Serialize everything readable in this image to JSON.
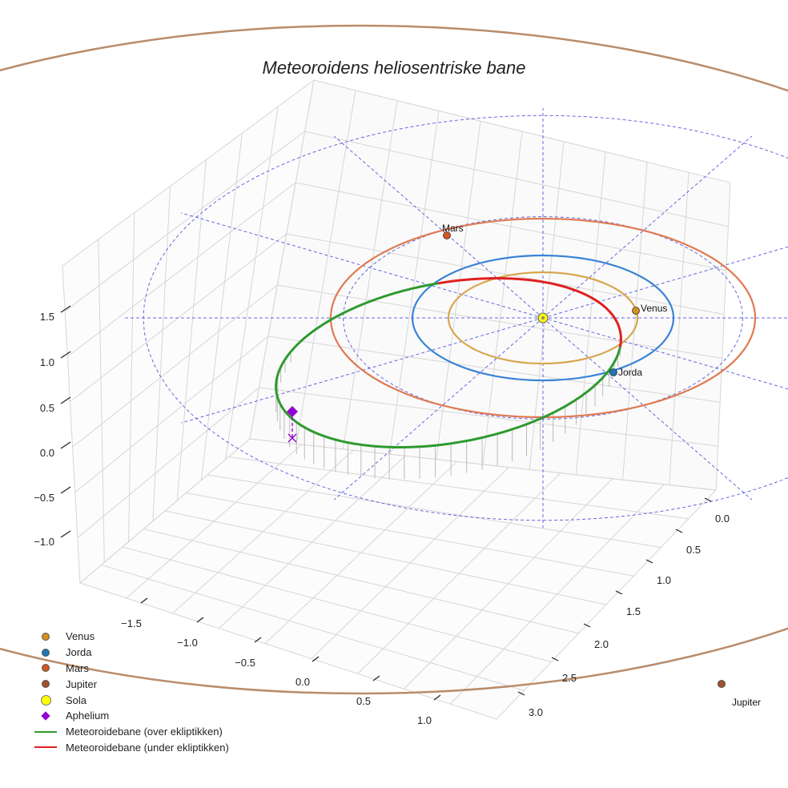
{
  "chart_data": {
    "type": "scatter",
    "projection": "3d",
    "title": "Meteoroidens heliosentriske bane",
    "xlabel": "",
    "ylabel": "",
    "zlabel": "",
    "x_ticks": [
      "−1.5",
      "−1.0",
      "−0.5",
      "0.0",
      "0.5",
      "1.0"
    ],
    "y_ticks": [
      "0.0",
      "0.5",
      "1.0",
      "1.5",
      "2.0",
      "2.5",
      "3.0"
    ],
    "z_ticks": [
      "1.5",
      "1.0",
      "0.5",
      "0.0",
      "−0.5",
      "−1.0"
    ],
    "grid": true,
    "legend_position": "bottom-left",
    "planets": [
      {
        "name": "Venus",
        "orbit_radius_au": 0.72,
        "color": "#d4901f",
        "orbit_color": "#d8a64f",
        "label": "Venus"
      },
      {
        "name": "Jorda",
        "orbit_radius_au": 1.0,
        "color": "#1f77b4",
        "orbit_color": "#3a83d6",
        "label": "Jorda"
      },
      {
        "name": "Mars",
        "orbit_radius_au": 1.52,
        "color": "#d2561f",
        "orbit_color": "#e07a52",
        "label": "Mars"
      },
      {
        "name": "Jupiter",
        "orbit_radius_au": 5.2,
        "color": "#a0522d",
        "orbit_color": "#b98c6a",
        "label": "Jupiter"
      }
    ],
    "sun": {
      "name": "Sola",
      "color": "#ffff00"
    },
    "aphelion": {
      "name": "Aphelium",
      "color": "#9400d3"
    },
    "series": [
      {
        "name": "Meteoroidebane (over ekliptikken)",
        "color": "#2e9a2e"
      },
      {
        "name": "Meteoroidebane (under ekliptikken)",
        "color": "#e02020"
      }
    ],
    "reference_grid": {
      "circles_au": [
        1,
        2
      ],
      "radial_lines": 12,
      "color": "#4b4bdc",
      "style": "dashed"
    }
  },
  "legend": [
    {
      "label": "Venus",
      "kind": "dot",
      "color": "#d4901f"
    },
    {
      "label": "Jorda",
      "kind": "dot",
      "color": "#1f77b4"
    },
    {
      "label": "Mars",
      "kind": "dot",
      "color": "#d2561f"
    },
    {
      "label": "Jupiter",
      "kind": "dot",
      "color": "#a0522d"
    },
    {
      "label": "Sola",
      "kind": "bigdot",
      "color": "#ffff00"
    },
    {
      "label": "Aphelium",
      "kind": "diamond",
      "color": "#9400d3"
    },
    {
      "label": "Meteoroidebane (over ekliptikken)",
      "kind": "line",
      "color": "#2e9a2e"
    },
    {
      "label": "Meteoroidebane (under ekliptikken)",
      "kind": "line",
      "color": "#e02020"
    }
  ]
}
